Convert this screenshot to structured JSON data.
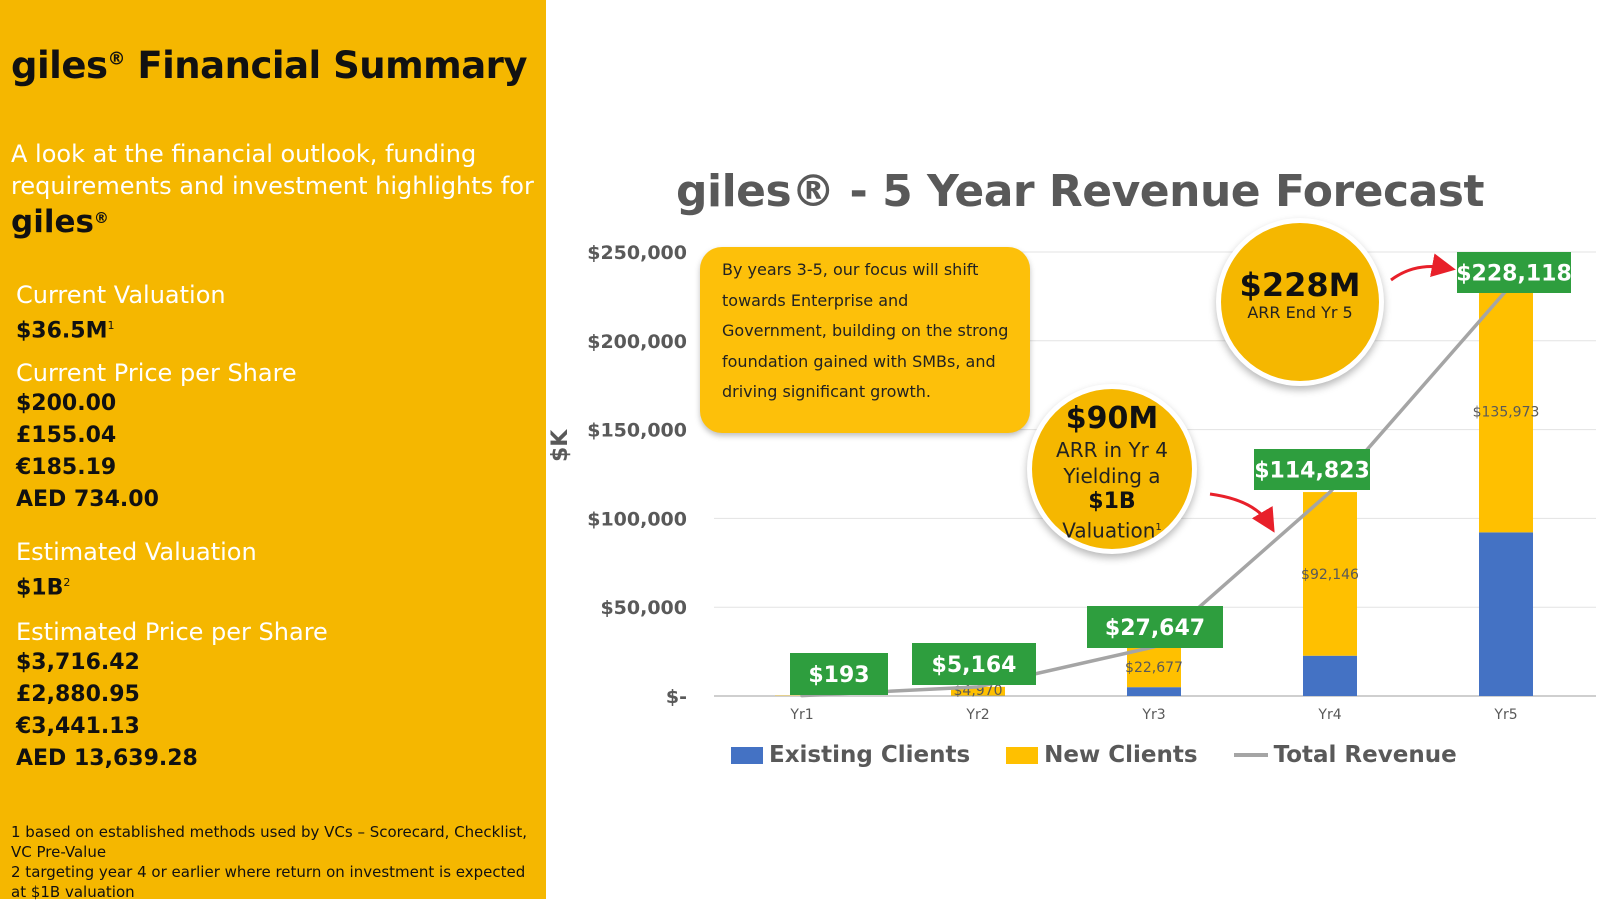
{
  "left_panel": {
    "title_brand": "giles",
    "title_rest": " Financial Summary",
    "registered": "®",
    "subtitle": "A look at the financial outlook, funding requirements and investment highlights for",
    "subtitle_brand": "giles",
    "sections": [
      {
        "label": "Current Valuation",
        "values": [
          "$36.5M"
        ],
        "note": "1"
      },
      {
        "label": "Current Price per Share",
        "values": [
          "$200.00",
          "£155.04",
          "€185.19",
          "AED 734.00"
        ],
        "note": ""
      },
      {
        "label": "Estimated Valuation",
        "values": [
          "$1B"
        ],
        "note": "2"
      },
      {
        "label": "Estimated Price per Share",
        "values": [
          "$3,716.42",
          "£2,880.95",
          "€3,441.13",
          "AED 13,639.28"
        ],
        "note": ""
      }
    ],
    "footnotes": [
      "1 based on established methods used by VCs – Scorecard, Checklist, VC Pre-Value",
      "2 targeting year 4 or earlier where return on investment is expected at $1B valuation"
    ]
  },
  "callout_text": "By years 3-5, our focus will shift towards Enterprise and Government, building on the strong foundation gained with SMBs, and driving significant growth.",
  "circle_arr5": {
    "big": "$228M",
    "small": "ARR End Yr 5"
  },
  "circle_arr4": {
    "big": "$90M",
    "line1": "ARR in Yr 4",
    "line2": "Yielding a",
    "line3": "$1B",
    "line4": "Valuation",
    "note": "1"
  },
  "colors": {
    "panel": "#F5B700",
    "existing": "#4472C4",
    "new": "#FFC000",
    "total": "#A5A5A5",
    "label_bg": "#2E9E3E"
  },
  "chart_data": {
    "type": "bar",
    "stacked": true,
    "title": "giles® - 5 Year Revenue Forecast",
    "ylabel": "$K",
    "xlabel": "",
    "categories": [
      "Yr1",
      "Yr2",
      "Yr3",
      "Yr4",
      "Yr5"
    ],
    "ylim": [
      0,
      250000
    ],
    "yticks": [
      0,
      50000,
      100000,
      150000,
      200000,
      250000
    ],
    "ytick_labels": [
      "$-",
      "$50,000",
      "$100,000",
      "$150,000",
      "$200,000",
      "$250,000"
    ],
    "grid": true,
    "legend_position": "bottom",
    "series": [
      {
        "name": "Existing Clients",
        "values": [
          0,
          194,
          4970,
          22677,
          92146
        ]
      },
      {
        "name": "New Clients",
        "values": [
          193,
          4970,
          22677,
          92146,
          135973
        ]
      },
      {
        "name": "Total Revenue",
        "type": "line",
        "values": [
          193,
          5164,
          27647,
          114823,
          228118
        ]
      }
    ],
    "new_labels": [
      "",
      "$4,970",
      "$22,677",
      "$92,146",
      "$135,973"
    ],
    "total_labels": [
      "$193",
      "$5,164",
      "$27,647",
      "$114,823",
      "$228,118"
    ]
  }
}
